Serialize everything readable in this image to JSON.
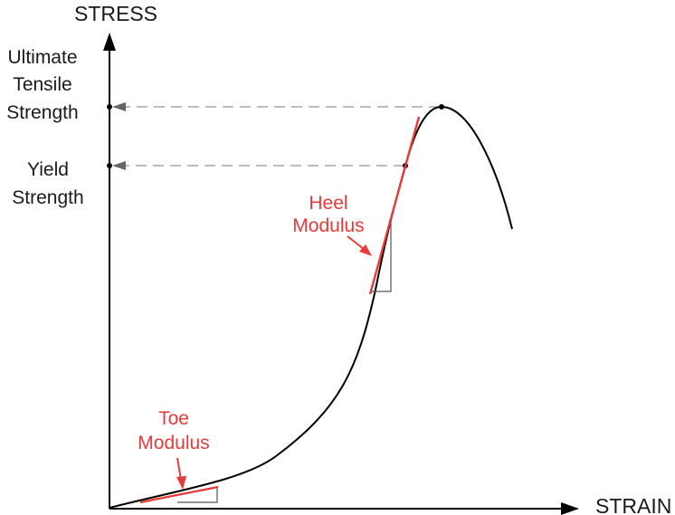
{
  "axes": {
    "y_label": "STRESS",
    "x_label": "STRAIN"
  },
  "strength_labels": {
    "ultimate": [
      "Ultimate",
      "Tensile",
      "Strength"
    ],
    "yield": [
      "Yield",
      "Strength"
    ]
  },
  "modulus_labels": {
    "heel": [
      "Heel",
      "Modulus"
    ],
    "toe": [
      "Toe",
      "Modulus"
    ]
  },
  "colors": {
    "curve": "#000000",
    "modulus": "#e83a3a",
    "guide": "#a6a6a6",
    "text": "#1a1a1a"
  }
}
